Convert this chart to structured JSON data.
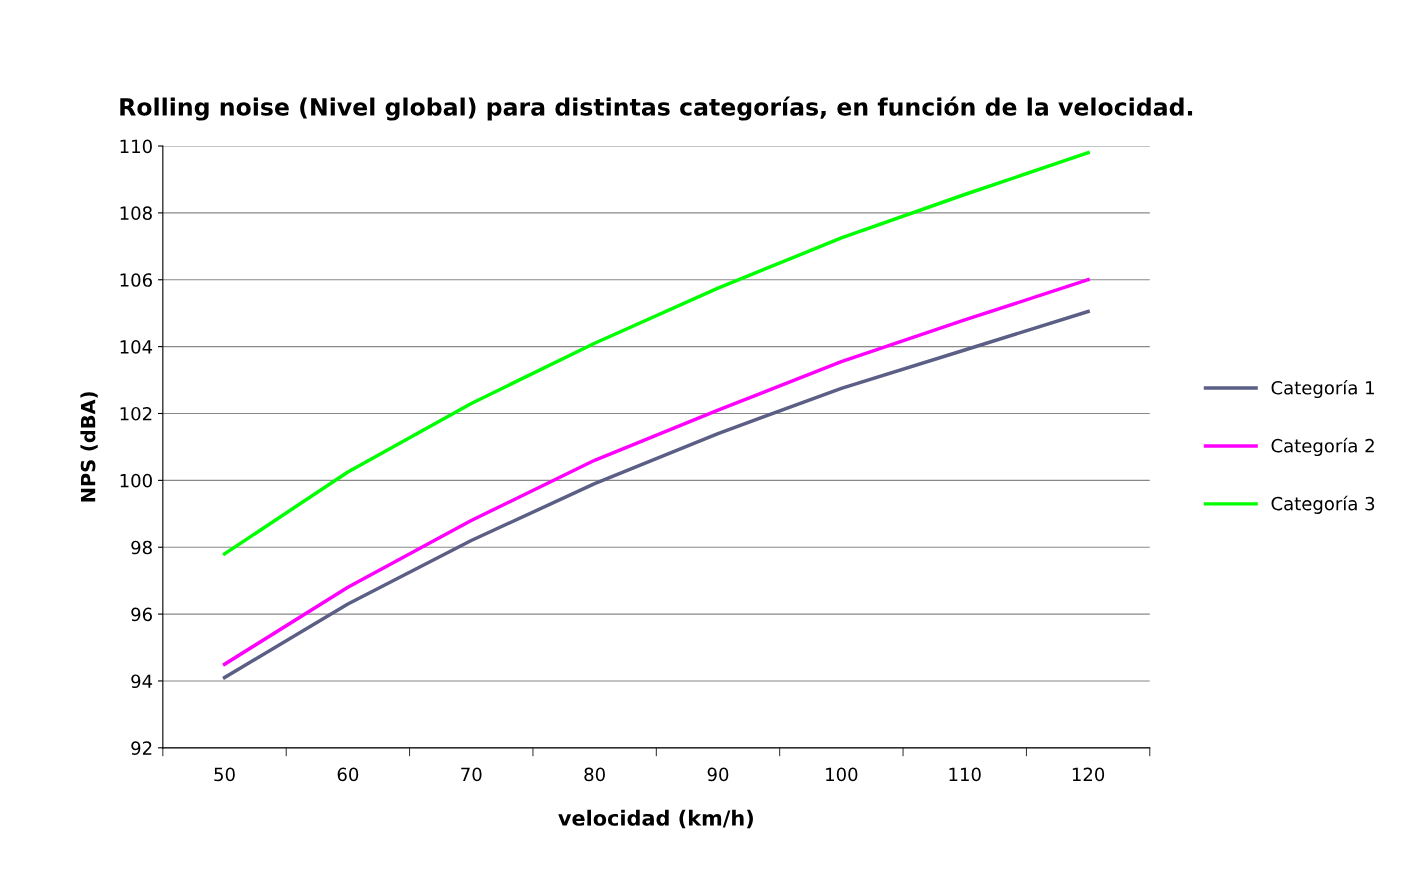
{
  "chart_data": {
    "type": "line",
    "title": "Rolling noise (Nivel global) para distintas categorías, en función de la velocidad.",
    "xlabel": "velocidad (km/h)",
    "ylabel": "NPS (dBA)",
    "categories": [
      "50",
      "60",
      "70",
      "80",
      "90",
      "100",
      "110",
      "120"
    ],
    "series": [
      {
        "name": "Categoría 1",
        "color": "#5b5f85",
        "values": [
          94.1,
          96.3,
          98.2,
          99.9,
          101.4,
          102.75,
          103.9,
          105.05
        ]
      },
      {
        "name": "Categoría 2",
        "color": "#ff00ff",
        "values": [
          94.5,
          96.8,
          98.8,
          100.6,
          102.1,
          103.55,
          104.8,
          106.0
        ]
      },
      {
        "name": "Categoría 3",
        "color": "#00ff00",
        "values": [
          97.8,
          100.25,
          102.3,
          104.1,
          105.75,
          107.25,
          108.55,
          109.8
        ]
      }
    ],
    "ylim": [
      92,
      110
    ],
    "yticks": [
      92,
      94,
      96,
      98,
      100,
      102,
      104,
      106,
      108,
      110
    ],
    "grid": "y",
    "legend": "right",
    "marker": "none",
    "line_style": "solid"
  }
}
